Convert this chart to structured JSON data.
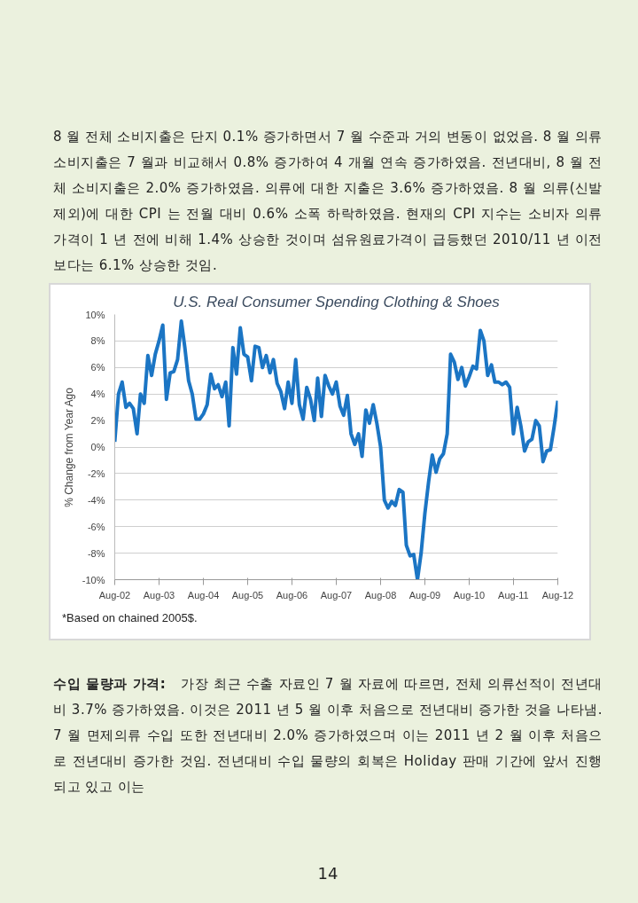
{
  "chart_data": {
    "type": "line",
    "title": "U.S. Real Consumer Spending Clothing & Shoes",
    "ylabel": "% Change from Year Ago",
    "annotations": [
      "8 월 전체 소비지출은 단지 0.1% 증가하면서 7 월 수준과 거의 변동이 없었음. 8 월 의류 소비지출은 7 월과 비교해서 0.8% 증가하여 4 개월 연속 증가하였음. 전년대비, 8 월 전체 소비지출은 2.0% 증가하였음. 의류에 대한 지출은 3.6% 증가하였음. 8 월 의류(신발제외)에 대한 CPI 는 전월 대비 0.6% 소폭 하락하였음. 현재의 CPI 지수는 소비자 의류 가격이 1 년 전에 비해 1.4% 상승한 것이며 섬유원료가격이 급등했던 2010/11 년 이전보다는 6.1% 상승한 것임.",
      "*Based on chained 2005$.",
      "수입 물량과 가격:",
      "가장 최근 수출 자료인 7 월 자료에 따르면, 전체 의류선적이 전년대비 3.7% 증가하였음. 이것은 2011 년 5 월 이후 처음으로 전년대비 증가한 것을 나타냄. 7 월 면제의류 수입 또한 전년대비 2.0% 증가하였으며 이는 2011 년 2 월 이후 처음으로 전년대비 증가한 것임. 전년대비 수입 물량의 회복은 Holiday 판매 기간에 앞서 진행되고 있고 이는",
      "14"
    ],
    "xlim": [
      "2002-08",
      "2012-08"
    ],
    "xticks": [
      {
        "value": "2002-08",
        "label": "Aug-02"
      },
      {
        "value": "2003-08",
        "label": "Aug-03"
      },
      {
        "value": "2004-08",
        "label": "Aug-04"
      },
      {
        "value": "2005-08",
        "label": "Aug-05"
      },
      {
        "value": "2006-08",
        "label": "Aug-06"
      },
      {
        "value": "2007-08",
        "label": "Aug-07"
      },
      {
        "value": "2008-08",
        "label": "Aug-08"
      },
      {
        "value": "2009-08",
        "label": "Aug-09"
      },
      {
        "value": "2010-08",
        "label": "Aug-10"
      },
      {
        "value": "2011-08",
        "label": "Aug-11"
      },
      {
        "value": "2012-08",
        "label": "Aug-12"
      }
    ],
    "ylim": [
      -10,
      10
    ],
    "yticks": [
      {
        "value": -10,
        "label": "-10%"
      },
      {
        "value": -8,
        "label": "-8%"
      },
      {
        "value": -6,
        "label": "-6%"
      },
      {
        "value": -4,
        "label": "-4%"
      },
      {
        "value": -2,
        "label": "-2%"
      },
      {
        "value": 0,
        "label": "0%"
      },
      {
        "value": 2,
        "label": "2%"
      },
      {
        "value": 4,
        "label": "4%"
      },
      {
        "value": 6,
        "label": "6%"
      },
      {
        "value": 8,
        "label": "8%"
      },
      {
        "value": 10,
        "label": "10%"
      }
    ],
    "grid": "y",
    "marker": "none",
    "line_style": "solid",
    "x": [
      "2002-08",
      "2002-09",
      "2002-10",
      "2002-11",
      "2002-12",
      "2003-01",
      "2003-02",
      "2003-03",
      "2003-04",
      "2003-05",
      "2003-06",
      "2003-07",
      "2003-08",
      "2003-09",
      "2003-10",
      "2003-11",
      "2003-12",
      "2004-01",
      "2004-02",
      "2004-03",
      "2004-04",
      "2004-05",
      "2004-06",
      "2004-07",
      "2004-08",
      "2004-09",
      "2004-10",
      "2004-11",
      "2004-12",
      "2005-01",
      "2005-02",
      "2005-03",
      "2005-04",
      "2005-05",
      "2005-06",
      "2005-07",
      "2005-08",
      "2005-09",
      "2005-10",
      "2005-11",
      "2005-12",
      "2006-01",
      "2006-02",
      "2006-03",
      "2006-04",
      "2006-05",
      "2006-06",
      "2006-07",
      "2006-08",
      "2006-09",
      "2006-10",
      "2006-11",
      "2006-12",
      "2007-01",
      "2007-02",
      "2007-03",
      "2007-04",
      "2007-05",
      "2007-06",
      "2007-07",
      "2007-08",
      "2007-09",
      "2007-10",
      "2007-11",
      "2007-12",
      "2008-01",
      "2008-02",
      "2008-03",
      "2008-04",
      "2008-05",
      "2008-06",
      "2008-07",
      "2008-08",
      "2008-09",
      "2008-10",
      "2008-11",
      "2008-12",
      "2009-01",
      "2009-02",
      "2009-03",
      "2009-04",
      "2009-05",
      "2009-06",
      "2009-07",
      "2009-08",
      "2009-09",
      "2009-10",
      "2009-11",
      "2009-12",
      "2010-01",
      "2010-02",
      "2010-03",
      "2010-04",
      "2010-05",
      "2010-06",
      "2010-07",
      "2010-08",
      "2010-09",
      "2010-10",
      "2010-11",
      "2010-12",
      "2011-01",
      "2011-02",
      "2011-03",
      "2011-04",
      "2011-05",
      "2011-06",
      "2011-07",
      "2011-08",
      "2011-09",
      "2011-10",
      "2011-11",
      "2011-12",
      "2012-01",
      "2012-02",
      "2012-03",
      "2012-04",
      "2012-05",
      "2012-06",
      "2012-07",
      "2012-08"
    ],
    "series": [
      {
        "color": "#1b75c4",
        "values": [
          0.4,
          4.0,
          4.9,
          3.0,
          3.3,
          2.9,
          1.0,
          4.0,
          3.3,
          6.9,
          5.4,
          7.0,
          8.0,
          9.2,
          3.6,
          5.6,
          5.7,
          6.6,
          9.5,
          7.5,
          5.0,
          4.0,
          2.1,
          2.1,
          2.5,
          3.2,
          5.5,
          4.4,
          4.7,
          3.8,
          4.9,
          1.6,
          7.5,
          5.5,
          9.0,
          7.0,
          6.8,
          5.0,
          7.6,
          7.5,
          6.0,
          6.9,
          5.6,
          6.6,
          4.8,
          4.2,
          2.9,
          4.9,
          3.3,
          6.6,
          3.2,
          2.1,
          4.5,
          3.6,
          2.0,
          5.2,
          2.3,
          5.4,
          4.6,
          4.0,
          4.9,
          3.1,
          2.4,
          3.9,
          1.0,
          0.2,
          1.0,
          -0.7,
          2.8,
          1.8,
          3.2,
          1.8,
          0.0,
          -4.0,
          -4.6,
          -4.1,
          -4.4,
          -3.2,
          -3.4,
          -7.4,
          -8.2,
          -8.1,
          -10.0,
          -8.0,
          -5.0,
          -2.6,
          -0.6,
          -1.9,
          -0.9,
          -0.5,
          1.0,
          7.0,
          6.4,
          5.1,
          6.0,
          4.6,
          5.3,
          6.1,
          5.9,
          8.8,
          8.0,
          5.4,
          6.2,
          4.9,
          4.9,
          4.7,
          4.9,
          4.5,
          1.0,
          3.0,
          1.6,
          -0.3,
          0.4,
          0.6,
          2.0,
          1.6,
          -1.1,
          -0.3,
          -0.2,
          1.5,
          3.5
        ]
      }
    ]
  }
}
